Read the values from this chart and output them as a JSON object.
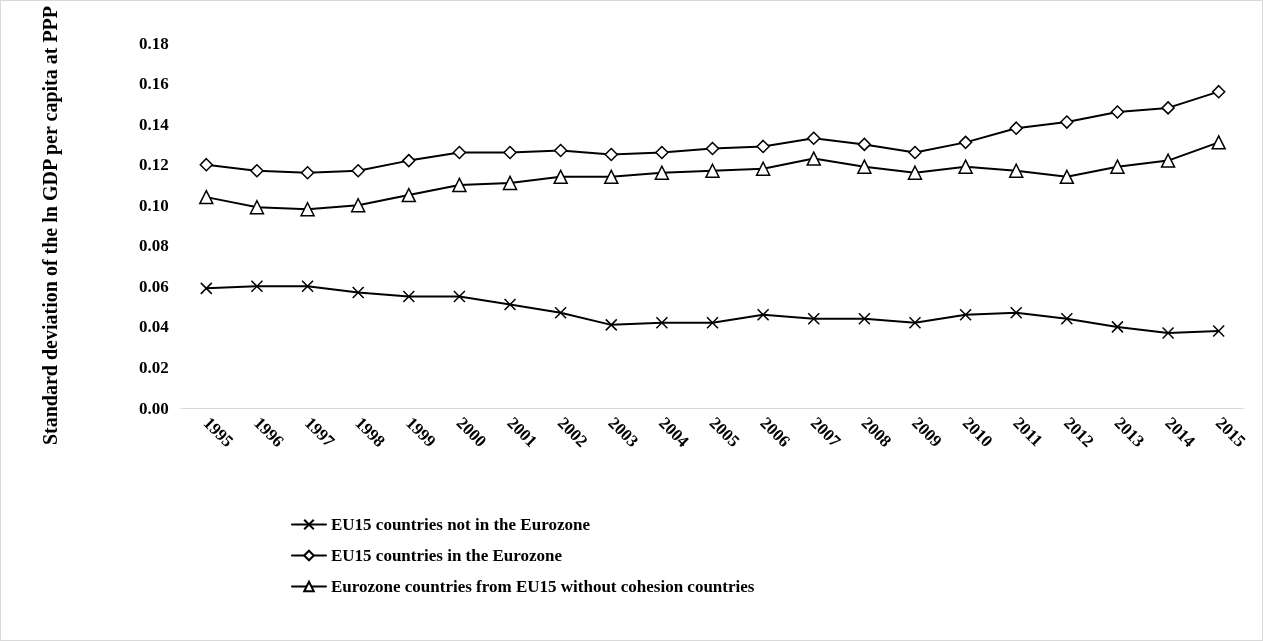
{
  "chart_data": {
    "type": "line",
    "ylabel": "Standard deviation of the ln GDP per capita at PPP",
    "categories": [
      "1995",
      "1996",
      "1997",
      "1998",
      "1999",
      "2000",
      "2001",
      "2002",
      "2003",
      "2004",
      "2005",
      "2006",
      "2007",
      "2008",
      "2009",
      "2010",
      "2011",
      "2012",
      "2013",
      "2014",
      "2015"
    ],
    "ylim": [
      0,
      0.18
    ],
    "yticks": [
      {
        "value": 0,
        "label": "0.00"
      },
      {
        "value": 0.02,
        "label": "0.02"
      },
      {
        "value": 0.04,
        "label": "0.04"
      },
      {
        "value": 0.06,
        "label": "0.06"
      },
      {
        "value": 0.08,
        "label": "0.08"
      },
      {
        "value": 0.1,
        "label": "0.10"
      },
      {
        "value": 0.12,
        "label": "0.12"
      },
      {
        "value": 0.14,
        "label": "0.14"
      },
      {
        "value": 0.16,
        "label": "0.16"
      },
      {
        "value": 0.18,
        "label": "0.18"
      }
    ],
    "legend": "bottom",
    "line_style": "solid",
    "series": [
      {
        "name": "EU15 countries not in the Eurozone",
        "color": "#000000",
        "marker": "cross",
        "values": [
          0.059,
          0.06,
          0.06,
          0.057,
          0.055,
          0.055,
          0.051,
          0.047,
          0.041,
          0.042,
          0.042,
          0.046,
          0.044,
          0.044,
          0.042,
          0.046,
          0.047,
          0.044,
          0.04,
          0.037,
          0.038
        ]
      },
      {
        "name": "EU15 countries in the Eurozone",
        "color": "#000000",
        "marker": "diamond",
        "values": [
          0.12,
          0.117,
          0.116,
          0.117,
          0.122,
          0.126,
          0.126,
          0.127,
          0.125,
          0.126,
          0.128,
          0.129,
          0.133,
          0.13,
          0.126,
          0.131,
          0.138,
          0.141,
          0.146,
          0.148,
          0.156
        ]
      },
      {
        "name": "Eurozone countries from EU15 without cohesion countries",
        "color": "#000000",
        "marker": "triangle",
        "values": [
          0.104,
          0.099,
          0.098,
          0.1,
          0.105,
          0.11,
          0.111,
          0.114,
          0.114,
          0.116,
          0.117,
          0.118,
          0.123,
          0.119,
          0.116,
          0.119,
          0.117,
          0.114,
          0.119,
          0.122,
          0.131
        ]
      }
    ]
  }
}
